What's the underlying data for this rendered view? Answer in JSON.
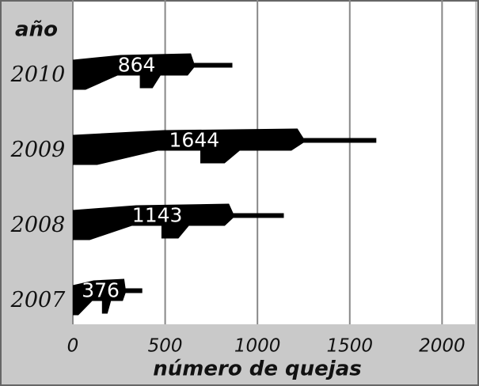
{
  "chart_data": {
    "type": "pictograph-bar",
    "y_label": "año",
    "x_label": "número de quejas",
    "categories": [
      "2010",
      "2009",
      "2008",
      "2007"
    ],
    "values": [
      864,
      1644,
      1143,
      376
    ],
    "color": "#000000",
    "xlim": [
      0,
      2170
    ],
    "xticks": [
      0,
      500,
      1000,
      1500,
      2000
    ],
    "grid": true
  }
}
